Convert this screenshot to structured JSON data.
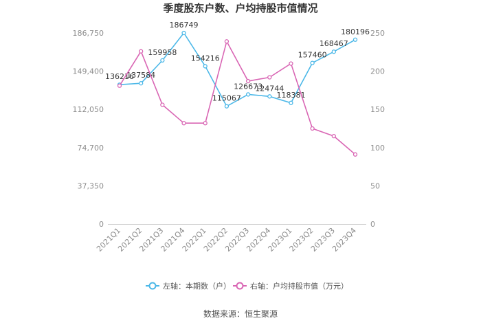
{
  "chart_data": {
    "type": "line",
    "title": "季度股东户数、户均持股市值情况",
    "categories": [
      "2021Q1",
      "2021Q2",
      "2021Q3",
      "2021Q4",
      "2022Q1",
      "2022Q2",
      "2022Q3",
      "2022Q4",
      "2023Q1",
      "2023Q2",
      "2023Q3",
      "2023Q4"
    ],
    "left_axis": {
      "ylim": [
        0,
        186750
      ],
      "ticks": [
        0,
        37350,
        74700,
        112050,
        149400,
        186750
      ],
      "tick_labels": [
        "0",
        "37,350",
        "74,700",
        "112,050",
        "149,400",
        "186,750"
      ]
    },
    "right_axis": {
      "ylim": [
        0,
        250
      ],
      "ticks": [
        0,
        50,
        100,
        150,
        200,
        250
      ],
      "tick_labels": [
        "0",
        "50",
        "100",
        "150",
        "200",
        "250"
      ]
    },
    "series": [
      {
        "name": "左轴：本期数（户）",
        "axis": "left",
        "color": "#4cb8e8",
        "values": [
          136216,
          137584,
          159958,
          186749,
          154216,
          115067,
          126673,
          124744,
          118381,
          157460,
          168467,
          180196
        ],
        "labels": [
          "136216",
          "137584",
          "159958",
          "186749",
          "154216",
          "115067",
          "126673",
          "124744",
          "118381",
          "157460",
          "168467",
          "180196"
        ]
      },
      {
        "name": "右轴：户均持股市值（万元）",
        "axis": "right",
        "color": "#d966b4",
        "values": [
          181,
          226,
          156,
          132,
          132,
          239,
          187,
          192,
          210,
          125,
          115,
          91
        ]
      }
    ],
    "legend_position": "bottom",
    "grid": false
  },
  "source": "数据来源：恒生聚源"
}
